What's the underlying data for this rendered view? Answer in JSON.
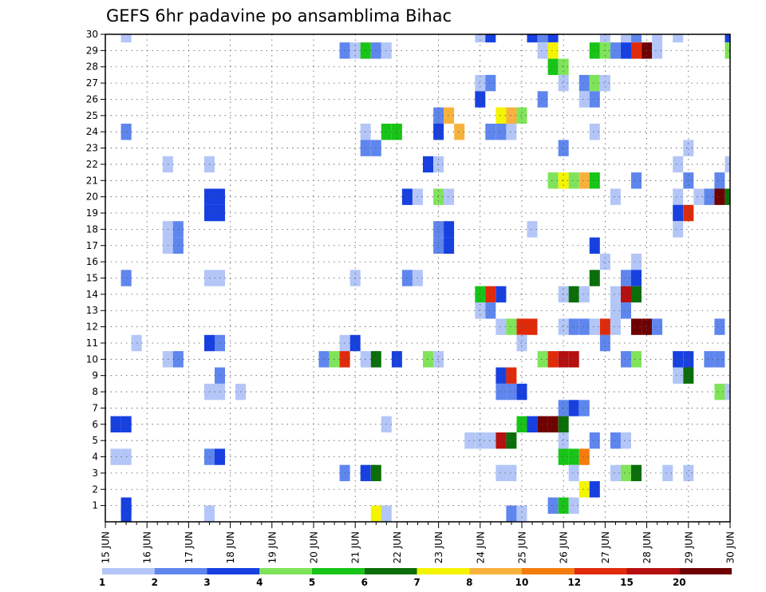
{
  "chart_data": {
    "type": "heatmap",
    "title": "GEFS 6hr padavine po ansamblima Bihac",
    "xlabel": "",
    "ylabel": "",
    "x_tick_labels": [
      "15 JUN",
      "16 JUN",
      "17 JUN",
      "18 JUN",
      "19 JUN",
      "20 JUN",
      "21 JUN",
      "22 JUN",
      "23 JUN",
      "24 JUN",
      "25 JUN",
      "26 JUN",
      "27 JUN",
      "28 JUN",
      "29 JUN",
      "30 JUN"
    ],
    "y_tick_labels": [
      "1",
      "2",
      "3",
      "4",
      "5",
      "6",
      "7",
      "8",
      "9",
      "10",
      "11",
      "12",
      "13",
      "14",
      "15",
      "16",
      "17",
      "18",
      "19",
      "20",
      "21",
      "22",
      "23",
      "24",
      "25",
      "26",
      "27",
      "28",
      "29",
      "30"
    ],
    "x_range": [
      "15 JUN 00Z",
      "30 JUN 00Z"
    ],
    "y_range": [
      0,
      30
    ],
    "grid": true,
    "legend": "bottom colorbar",
    "colorbar": {
      "labels": [
        "1",
        "2",
        "3",
        "4",
        "5",
        "6",
        "7",
        "8",
        "10",
        "12",
        "15",
        "20"
      ],
      "colors": [
        "#b3c6f7",
        "#5f86ee",
        "#1740e0",
        "#7fe45a",
        "#17c417",
        "#0a6e0a",
        "#f4f400",
        "#f7b23c",
        "#f47c0c",
        "#e02a0a",
        "#b50f0f",
        "#6e0000"
      ]
    },
    "cells": [
      [
        30,
        15.5,
        1
      ],
      [
        30,
        24.0,
        1
      ],
      [
        30,
        24.25,
        3
      ],
      [
        30,
        25.25,
        3
      ],
      [
        30,
        25.5,
        2
      ],
      [
        30,
        25.75,
        3
      ],
      [
        30,
        27.0,
        1
      ],
      [
        30,
        27.5,
        1
      ],
      [
        30,
        27.75,
        2
      ],
      [
        30,
        28.25,
        1
      ],
      [
        30,
        28.75,
        1
      ],
      [
        30,
        30.0,
        3
      ],
      [
        29,
        20.75,
        2
      ],
      [
        29,
        21.0,
        1
      ],
      [
        29,
        21.25,
        5
      ],
      [
        29,
        21.5,
        2
      ],
      [
        29,
        21.75,
        1
      ],
      [
        29,
        25.5,
        1
      ],
      [
        29,
        25.75,
        7
      ],
      [
        29,
        26.75,
        5
      ],
      [
        29,
        27.0,
        4
      ],
      [
        29,
        27.25,
        2
      ],
      [
        29,
        27.5,
        3
      ],
      [
        29,
        27.75,
        10
      ],
      [
        29,
        28.0,
        12
      ],
      [
        29,
        28.25,
        1
      ],
      [
        29,
        30.0,
        4
      ],
      [
        28,
        25.75,
        5
      ],
      [
        28,
        26.0,
        4
      ],
      [
        27,
        24.0,
        1
      ],
      [
        27,
        24.25,
        2
      ],
      [
        27,
        26.0,
        1
      ],
      [
        27,
        26.5,
        2
      ],
      [
        27,
        26.75,
        4
      ],
      [
        27,
        27.0,
        1
      ],
      [
        26,
        24.0,
        3
      ],
      [
        26,
        25.5,
        2
      ],
      [
        26,
        26.5,
        1
      ],
      [
        26,
        26.75,
        2
      ],
      [
        25,
        23.0,
        2
      ],
      [
        25,
        23.25,
        8
      ],
      [
        25,
        25.0,
        4
      ],
      [
        25,
        24.5,
        7
      ],
      [
        25,
        24.75,
        8
      ],
      [
        24,
        15.5,
        2
      ],
      [
        24,
        21.25,
        1
      ],
      [
        24,
        21.75,
        5
      ],
      [
        24,
        22.0,
        5
      ],
      [
        24,
        23.0,
        3
      ],
      [
        24,
        23.5,
        8
      ],
      [
        24,
        24.25,
        2
      ],
      [
        24,
        24.5,
        2
      ],
      [
        24,
        24.75,
        1
      ],
      [
        24,
        26.75,
        1
      ],
      [
        23,
        21.25,
        2
      ],
      [
        23,
        21.5,
        2
      ],
      [
        23,
        26.0,
        2
      ],
      [
        23,
        29.0,
        1
      ],
      [
        22,
        16.5,
        1
      ],
      [
        22,
        17.5,
        1
      ],
      [
        22,
        22.75,
        3
      ],
      [
        22,
        23.0,
        1
      ],
      [
        22,
        28.75,
        1
      ],
      [
        22,
        30.0,
        1
      ],
      [
        21,
        25.75,
        4
      ],
      [
        21,
        26.0,
        7
      ],
      [
        21,
        26.25,
        4
      ],
      [
        21,
        26.5,
        8
      ],
      [
        21,
        26.75,
        5
      ],
      [
        21,
        27.75,
        2
      ],
      [
        21,
        29.0,
        2
      ],
      [
        21,
        29.75,
        2
      ],
      [
        20,
        17.5,
        3
      ],
      [
        20,
        17.75,
        3
      ],
      [
        20,
        22.25,
        3
      ],
      [
        20,
        22.5,
        1
      ],
      [
        20,
        23.0,
        4
      ],
      [
        20,
        23.25,
        1
      ],
      [
        20,
        27.25,
        1
      ],
      [
        20,
        28.75,
        1
      ],
      [
        20,
        29.25,
        1
      ],
      [
        20,
        29.5,
        2
      ],
      [
        20,
        29.75,
        12
      ],
      [
        20,
        30.0,
        6
      ],
      [
        19,
        17.5,
        3
      ],
      [
        19,
        17.75,
        3
      ],
      [
        19,
        28.75,
        3
      ],
      [
        19,
        29.0,
        10
      ],
      [
        18,
        16.5,
        1
      ],
      [
        18,
        16.75,
        2
      ],
      [
        18,
        23.0,
        2
      ],
      [
        18,
        23.25,
        3
      ],
      [
        18,
        25.25,
        1
      ],
      [
        18,
        28.75,
        1
      ],
      [
        17,
        16.5,
        1
      ],
      [
        17,
        16.75,
        2
      ],
      [
        17,
        23.0,
        2
      ],
      [
        17,
        23.25,
        3
      ],
      [
        17,
        26.75,
        3
      ],
      [
        16,
        27.0,
        1
      ],
      [
        16,
        27.75,
        1
      ],
      [
        15,
        15.5,
        2
      ],
      [
        15,
        17.5,
        1
      ],
      [
        15,
        17.75,
        1
      ],
      [
        15,
        21.0,
        1
      ],
      [
        15,
        22.25,
        2
      ],
      [
        15,
        22.5,
        1
      ],
      [
        15,
        26.75,
        6
      ],
      [
        15,
        27.5,
        2
      ],
      [
        15,
        27.75,
        3
      ],
      [
        14,
        24.0,
        5
      ],
      [
        14,
        24.25,
        10
      ],
      [
        14,
        24.5,
        3
      ],
      [
        14,
        26.0,
        1
      ],
      [
        14,
        26.25,
        6
      ],
      [
        14,
        26.5,
        1
      ],
      [
        14,
        27.25,
        1
      ],
      [
        14,
        27.5,
        11
      ],
      [
        14,
        27.75,
        6
      ],
      [
        13,
        24.0,
        1
      ],
      [
        13,
        24.25,
        2
      ],
      [
        13,
        27.25,
        1
      ],
      [
        13,
        27.5,
        2
      ],
      [
        12,
        24.5,
        1
      ],
      [
        12,
        24.75,
        4
      ],
      [
        12,
        25.0,
        10
      ],
      [
        12,
        25.25,
        10
      ],
      [
        12,
        26.0,
        1
      ],
      [
        12,
        26.25,
        2
      ],
      [
        12,
        26.5,
        2
      ],
      [
        12,
        26.75,
        1
      ],
      [
        12,
        27.0,
        10
      ],
      [
        12,
        27.25,
        1
      ],
      [
        12,
        27.75,
        12
      ],
      [
        12,
        28.0,
        12
      ],
      [
        12,
        28.25,
        2
      ],
      [
        12,
        29.75,
        2
      ],
      [
        11,
        15.75,
        1
      ],
      [
        11,
        20.75,
        1
      ],
      [
        11,
        21.0,
        3
      ],
      [
        11,
        17.5,
        3
      ],
      [
        11,
        17.75,
        2
      ],
      [
        11,
        25.0,
        1
      ],
      [
        11,
        27.0,
        2
      ],
      [
        10,
        16.5,
        1
      ],
      [
        10,
        16.75,
        2
      ],
      [
        10,
        20.25,
        2
      ],
      [
        10,
        20.5,
        4
      ],
      [
        10,
        20.75,
        10
      ],
      [
        10,
        21.25,
        1
      ],
      [
        10,
        21.5,
        6
      ],
      [
        10,
        22.0,
        3
      ],
      [
        10,
        22.75,
        4
      ],
      [
        10,
        23.0,
        1
      ],
      [
        10,
        25.5,
        4
      ],
      [
        10,
        25.75,
        10
      ],
      [
        10,
        26.0,
        11
      ],
      [
        10,
        26.25,
        11
      ],
      [
        10,
        27.5,
        2
      ],
      [
        10,
        27.75,
        4
      ],
      [
        10,
        28.75,
        3
      ],
      [
        10,
        29.0,
        3
      ],
      [
        10,
        29.5,
        2
      ],
      [
        10,
        29.75,
        2
      ],
      [
        9,
        17.75,
        2
      ],
      [
        9,
        24.5,
        3
      ],
      [
        9,
        24.75,
        10
      ],
      [
        9,
        28.75,
        1
      ],
      [
        9,
        29.0,
        6
      ],
      [
        8,
        17.5,
        1
      ],
      [
        8,
        17.75,
        1
      ],
      [
        8,
        18.25,
        1
      ],
      [
        8,
        24.5,
        2
      ],
      [
        8,
        24.75,
        2
      ],
      [
        8,
        25.0,
        3
      ],
      [
        8,
        29.75,
        4
      ],
      [
        8,
        30.0,
        1
      ],
      [
        7,
        26.0,
        2
      ],
      [
        7,
        26.25,
        3
      ],
      [
        7,
        26.5,
        2
      ],
      [
        6,
        15.25,
        3
      ],
      [
        6,
        15.5,
        3
      ],
      [
        6,
        21.75,
        1
      ],
      [
        6,
        25.0,
        5
      ],
      [
        6,
        25.25,
        3
      ],
      [
        6,
        25.5,
        12
      ],
      [
        6,
        25.75,
        12
      ],
      [
        6,
        26.0,
        6
      ],
      [
        5,
        23.75,
        1
      ],
      [
        5,
        24.0,
        1
      ],
      [
        5,
        24.25,
        1
      ],
      [
        5,
        24.5,
        11
      ],
      [
        5,
        24.75,
        6
      ],
      [
        5,
        26.0,
        1
      ],
      [
        5,
        26.75,
        2
      ],
      [
        5,
        27.25,
        2
      ],
      [
        5,
        27.5,
        1
      ],
      [
        4,
        15.25,
        1
      ],
      [
        4,
        15.5,
        1
      ],
      [
        4,
        17.5,
        2
      ],
      [
        4,
        17.75,
        3
      ],
      [
        4,
        26.0,
        5
      ],
      [
        4,
        26.25,
        5
      ],
      [
        4,
        26.5,
        9
      ],
      [
        3,
        20.75,
        2
      ],
      [
        3,
        21.25,
        3
      ],
      [
        3,
        21.5,
        6
      ],
      [
        3,
        24.5,
        1
      ],
      [
        3,
        24.75,
        1
      ],
      [
        3,
        26.25,
        1
      ],
      [
        3,
        27.25,
        1
      ],
      [
        3,
        27.5,
        4
      ],
      [
        3,
        27.75,
        6
      ],
      [
        3,
        28.5,
        1
      ],
      [
        3,
        29.0,
        1
      ],
      [
        2,
        26.5,
        7
      ],
      [
        2,
        26.75,
        3
      ],
      [
        1,
        15.5,
        3
      ],
      [
        1,
        25.75,
        2
      ],
      [
        1,
        26.0,
        5
      ],
      [
        1,
        26.25,
        1
      ],
      [
        0.5,
        15.5,
        3
      ],
      [
        0.5,
        17.5,
        1
      ],
      [
        0.5,
        21.5,
        7
      ],
      [
        0.5,
        21.75,
        1
      ],
      [
        0.5,
        24.75,
        2
      ],
      [
        0.5,
        25.0,
        1
      ]
    ]
  }
}
